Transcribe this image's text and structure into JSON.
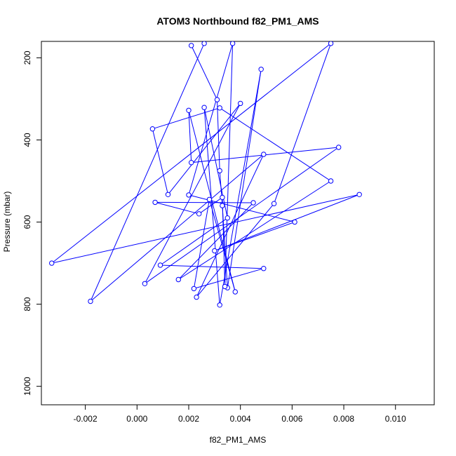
{
  "chart_data": {
    "type": "line",
    "title": "ATOM3 Northbound f82_PM1_AMS",
    "xlabel": "f82_PM1_AMS",
    "ylabel": "Pressure (mbar)",
    "xlim": [
      -0.0037,
      0.0115
    ],
    "ylim": [
      1045,
      160
    ],
    "y_reversed": true,
    "x_ticks": [
      -0.002,
      0.0,
      0.002,
      0.004,
      0.006,
      0.008,
      0.01
    ],
    "x_tick_labels": [
      "-0.002",
      "0.000",
      "0.002",
      "0.004",
      "0.006",
      "0.008",
      "0.010"
    ],
    "y_ticks": [
      200,
      400,
      600,
      800,
      1000
    ],
    "y_tick_labels": [
      "200",
      "400",
      "600",
      "800",
      "1000"
    ],
    "grid": false,
    "colors": {
      "series": "#0000ff",
      "axis": "#000000",
      "text": "#000000"
    },
    "series": [
      {
        "marker": "open-circle",
        "points": [
          [
            0.0021,
            170
          ],
          [
            0.0031,
            302
          ],
          [
            0.0032,
            475
          ],
          [
            0.0033,
            560
          ],
          [
            0.0035,
            760
          ],
          [
            0.0048,
            228
          ],
          [
            0.0032,
            802
          ],
          [
            0.0026,
            321
          ],
          [
            0.0035,
            590
          ],
          [
            0.0009,
            705
          ],
          [
            0.0049,
            713
          ],
          [
            0.0022,
            762
          ],
          [
            0.0028,
            545
          ],
          [
            0.0038,
            770
          ],
          [
            0.002,
            328
          ],
          [
            0.0021,
            455
          ],
          [
            0.0078,
            418
          ],
          [
            0.0003,
            750
          ],
          [
            0.004,
            311
          ],
          [
            0.0012,
            533
          ],
          [
            0.0006,
            373
          ],
          [
            0.0032,
            322
          ],
          [
            0.0075,
            500
          ],
          [
            0.0016,
            740
          ],
          [
            0.0045,
            553
          ],
          [
            0.0007,
            552
          ],
          [
            0.0024,
            580
          ],
          [
            0.0033,
            540
          ],
          [
            0.0034,
            757
          ],
          [
            0.0037,
            165
          ],
          [
            0.002,
            534
          ],
          [
            0.0061,
            600
          ],
          [
            0.003,
            670
          ],
          [
            0.0086,
            533
          ],
          [
            -0.0033,
            700
          ],
          [
            0.0075,
            165
          ],
          [
            0.0053,
            555
          ],
          [
            0.0023,
            783
          ],
          [
            0.0049,
            435
          ],
          [
            -0.0018,
            793
          ],
          [
            0.0026,
            165
          ]
        ]
      }
    ]
  }
}
